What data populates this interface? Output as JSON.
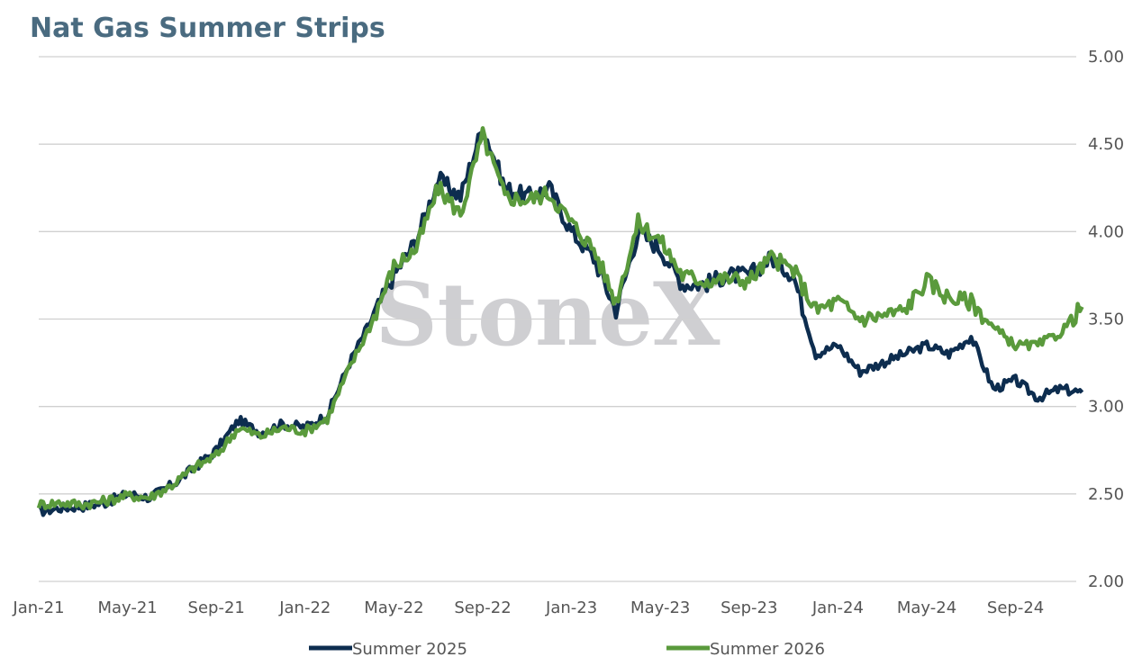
{
  "chart_data": {
    "type": "line",
    "title": "Nat Gas Summer Strips",
    "watermark": "StoneX",
    "xlabel": "",
    "ylabel": "",
    "ylim": [
      2.0,
      5.0
    ],
    "y_ticks": [
      "2.00",
      "2.50",
      "3.00",
      "3.50",
      "4.00",
      "4.50",
      "5.00"
    ],
    "y_axis_side": "right",
    "x_ticks": [
      "Jan-21",
      "May-21",
      "Sep-21",
      "Jan-22",
      "May-22",
      "Sep-22",
      "Jan-23",
      "May-23",
      "Sep-23",
      "Jan-24",
      "May-24",
      "Sep-24"
    ],
    "grid": "horizontal",
    "legend_position": "bottom",
    "colors": {
      "title": "#4a6b80",
      "axis_text": "#555555",
      "grid": "#d0d0d0",
      "watermark": "#cfcfd2"
    },
    "x": [
      "Jan-21",
      "Feb-21",
      "Mar-21",
      "Apr-21",
      "May-21",
      "Jun-21",
      "Jul-21",
      "Aug-21",
      "Sep-21",
      "Oct-21",
      "Nov-21",
      "Dec-21",
      "Jan-22",
      "Feb-22",
      "Mar-22",
      "Apr-22",
      "May-22",
      "Jun-22",
      "Jul-22",
      "Aug-22",
      "Sep-22",
      "Oct-22",
      "Nov-22",
      "Dec-22",
      "Jan-23",
      "Feb-23",
      "Mar-23",
      "Apr-23",
      "May-23",
      "Jun-23",
      "Jul-23",
      "Aug-23",
      "Sep-23",
      "Oct-23",
      "Nov-23",
      "Dec-23",
      "Jan-24",
      "Feb-24",
      "Mar-24",
      "Apr-24",
      "May-24",
      "Jun-24",
      "Jul-24",
      "Aug-24",
      "Sep-24",
      "Oct-24",
      "Nov-24",
      "Dec-24"
    ],
    "series": [
      {
        "name": "Summer 2025",
        "color": "#0d2d4f",
        "values": [
          2.4,
          2.42,
          2.43,
          2.45,
          2.5,
          2.48,
          2.55,
          2.65,
          2.75,
          2.92,
          2.85,
          2.9,
          2.88,
          2.95,
          3.25,
          3.5,
          3.75,
          3.95,
          4.3,
          4.2,
          4.6,
          4.25,
          4.2,
          4.25,
          4.0,
          3.85,
          3.55,
          4.0,
          3.9,
          3.7,
          3.7,
          3.75,
          3.75,
          3.85,
          3.75,
          3.3,
          3.35,
          3.2,
          3.25,
          3.3,
          3.35,
          3.3,
          3.4,
          3.1,
          3.15,
          3.05,
          3.1,
          3.08
        ]
      },
      {
        "name": "Summer 2026",
        "color": "#5a9a3c",
        "values": [
          2.44,
          2.45,
          2.44,
          2.46,
          2.49,
          2.48,
          2.55,
          2.65,
          2.72,
          2.88,
          2.83,
          2.88,
          2.86,
          2.93,
          3.22,
          3.48,
          3.8,
          3.9,
          4.25,
          4.1,
          4.55,
          4.2,
          4.18,
          4.22,
          4.05,
          3.9,
          3.6,
          4.05,
          3.95,
          3.75,
          3.72,
          3.73,
          3.72,
          3.85,
          3.78,
          3.55,
          3.6,
          3.5,
          3.52,
          3.55,
          3.72,
          3.62,
          3.6,
          3.45,
          3.35,
          3.35,
          3.42,
          3.57
        ]
      }
    ]
  }
}
